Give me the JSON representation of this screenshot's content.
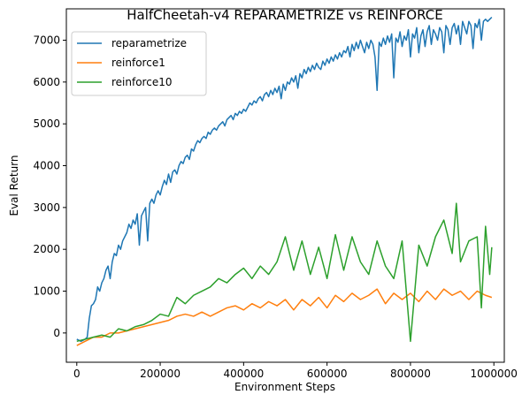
{
  "chart_data": {
    "type": "line",
    "title": "HalfCheetah-v4 REPARAMETRIZE vs REINFORCE",
    "xlabel": "Environment Steps",
    "ylabel": "Eval Return",
    "xlim": [
      -25000,
      1025000
    ],
    "ylim": [
      -700,
      7750
    ],
    "xticks": [
      0,
      200000,
      400000,
      600000,
      800000,
      1000000
    ],
    "yticks": [
      0,
      1000,
      2000,
      3000,
      4000,
      5000,
      6000,
      7000
    ],
    "xtick_labels": [
      "0",
      "200000",
      "400000",
      "600000",
      "800000",
      "1000000"
    ],
    "ytick_labels": [
      "0",
      "1000",
      "2000",
      "3000",
      "4000",
      "5000",
      "6000",
      "7000"
    ],
    "grid": false,
    "legend_position": "top-left",
    "series": [
      {
        "name": "reparametrize",
        "color": "#1f77b4",
        "points": [
          [
            0,
            -150
          ],
          [
            10000,
            -200
          ],
          [
            20000,
            -150
          ],
          [
            25000,
            -100
          ],
          [
            30000,
            350
          ],
          [
            35000,
            650
          ],
          [
            40000,
            700
          ],
          [
            45000,
            800
          ],
          [
            50000,
            1100
          ],
          [
            55000,
            1000
          ],
          [
            60000,
            1200
          ],
          [
            65000,
            1300
          ],
          [
            70000,
            1500
          ],
          [
            75000,
            1600
          ],
          [
            80000,
            1300
          ],
          [
            85000,
            1700
          ],
          [
            90000,
            1900
          ],
          [
            95000,
            1850
          ],
          [
            100000,
            2100
          ],
          [
            105000,
            2000
          ],
          [
            110000,
            2200
          ],
          [
            115000,
            2300
          ],
          [
            120000,
            2400
          ],
          [
            125000,
            2600
          ],
          [
            130000,
            2500
          ],
          [
            135000,
            2700
          ],
          [
            140000,
            2600
          ],
          [
            145000,
            2850
          ],
          [
            150000,
            2100
          ],
          [
            155000,
            2800
          ],
          [
            160000,
            2900
          ],
          [
            165000,
            3000
          ],
          [
            170000,
            2200
          ],
          [
            175000,
            3100
          ],
          [
            180000,
            3200
          ],
          [
            185000,
            3100
          ],
          [
            190000,
            3300
          ],
          [
            195000,
            3400
          ],
          [
            200000,
            3300
          ],
          [
            205000,
            3500
          ],
          [
            210000,
            3650
          ],
          [
            215000,
            3550
          ],
          [
            220000,
            3800
          ],
          [
            225000,
            3600
          ],
          [
            230000,
            3850
          ],
          [
            235000,
            3900
          ],
          [
            240000,
            3800
          ],
          [
            245000,
            4000
          ],
          [
            250000,
            4100
          ],
          [
            255000,
            4050
          ],
          [
            260000,
            4200
          ],
          [
            265000,
            4250
          ],
          [
            270000,
            4150
          ],
          [
            275000,
            4400
          ],
          [
            280000,
            4350
          ],
          [
            285000,
            4500
          ],
          [
            290000,
            4600
          ],
          [
            295000,
            4550
          ],
          [
            300000,
            4650
          ],
          [
            305000,
            4700
          ],
          [
            310000,
            4650
          ],
          [
            315000,
            4800
          ],
          [
            320000,
            4750
          ],
          [
            325000,
            4850
          ],
          [
            330000,
            4900
          ],
          [
            335000,
            4850
          ],
          [
            340000,
            4950
          ],
          [
            345000,
            5000
          ],
          [
            350000,
            5050
          ],
          [
            355000,
            4950
          ],
          [
            360000,
            5100
          ],
          [
            365000,
            5150
          ],
          [
            370000,
            5200
          ],
          [
            375000,
            5100
          ],
          [
            380000,
            5250
          ],
          [
            385000,
            5200
          ],
          [
            390000,
            5300
          ],
          [
            395000,
            5250
          ],
          [
            400000,
            5350
          ],
          [
            405000,
            5300
          ],
          [
            410000,
            5400
          ],
          [
            415000,
            5500
          ],
          [
            420000,
            5450
          ],
          [
            425000,
            5550
          ],
          [
            430000,
            5500
          ],
          [
            435000,
            5600
          ],
          [
            440000,
            5650
          ],
          [
            445000,
            5550
          ],
          [
            450000,
            5700
          ],
          [
            455000,
            5750
          ],
          [
            460000,
            5650
          ],
          [
            465000,
            5800
          ],
          [
            470000,
            5700
          ],
          [
            475000,
            5850
          ],
          [
            480000,
            5750
          ],
          [
            485000,
            5900
          ],
          [
            490000,
            5600
          ],
          [
            495000,
            5950
          ],
          [
            500000,
            5800
          ],
          [
            505000,
            6000
          ],
          [
            510000,
            5950
          ],
          [
            515000,
            6100
          ],
          [
            520000,
            6000
          ],
          [
            525000,
            6150
          ],
          [
            530000,
            5850
          ],
          [
            535000,
            6200
          ],
          [
            540000,
            6100
          ],
          [
            545000,
            6300
          ],
          [
            550000,
            6200
          ],
          [
            555000,
            6350
          ],
          [
            560000,
            6250
          ],
          [
            565000,
            6400
          ],
          [
            570000,
            6300
          ],
          [
            575000,
            6450
          ],
          [
            580000,
            6350
          ],
          [
            585000,
            6300
          ],
          [
            590000,
            6500
          ],
          [
            595000,
            6400
          ],
          [
            600000,
            6550
          ],
          [
            605000,
            6450
          ],
          [
            610000,
            6600
          ],
          [
            615000,
            6500
          ],
          [
            620000,
            6650
          ],
          [
            625000,
            6550
          ],
          [
            630000,
            6700
          ],
          [
            635000,
            6600
          ],
          [
            640000,
            6750
          ],
          [
            645000,
            6700
          ],
          [
            650000,
            6850
          ],
          [
            655000,
            6600
          ],
          [
            660000,
            6900
          ],
          [
            665000,
            6750
          ],
          [
            670000,
            6950
          ],
          [
            675000,
            6800
          ],
          [
            680000,
            7000
          ],
          [
            685000,
            6850
          ],
          [
            690000,
            6700
          ],
          [
            695000,
            6950
          ],
          [
            700000,
            6800
          ],
          [
            705000,
            7000
          ],
          [
            710000,
            6900
          ],
          [
            715000,
            6600
          ],
          [
            720000,
            5800
          ],
          [
            725000,
            6950
          ],
          [
            730000,
            6850
          ],
          [
            735000,
            7050
          ],
          [
            740000,
            6900
          ],
          [
            745000,
            7100
          ],
          [
            750000,
            6950
          ],
          [
            755000,
            7150
          ],
          [
            760000,
            6100
          ],
          [
            765000,
            7050
          ],
          [
            770000,
            6950
          ],
          [
            775000,
            7200
          ],
          [
            780000,
            6850
          ],
          [
            785000,
            7100
          ],
          [
            790000,
            7000
          ],
          [
            795000,
            7250
          ],
          [
            800000,
            6600
          ],
          [
            805000,
            7150
          ],
          [
            810000,
            7050
          ],
          [
            815000,
            7300
          ],
          [
            820000,
            6700
          ],
          [
            825000,
            7100
          ],
          [
            830000,
            7250
          ],
          [
            835000,
            6850
          ],
          [
            840000,
            7200
          ],
          [
            845000,
            7350
          ],
          [
            850000,
            6900
          ],
          [
            855000,
            7250
          ],
          [
            860000,
            7150
          ],
          [
            865000,
            7000
          ],
          [
            870000,
            7300
          ],
          [
            875000,
            7200
          ],
          [
            880000,
            6700
          ],
          [
            885000,
            7350
          ],
          [
            890000,
            7250
          ],
          [
            895000,
            6900
          ],
          [
            900000,
            7300
          ],
          [
            905000,
            7400
          ],
          [
            910000,
            7150
          ],
          [
            915000,
            7350
          ],
          [
            920000,
            6900
          ],
          [
            925000,
            7450
          ],
          [
            930000,
            7300
          ],
          [
            935000,
            7150
          ],
          [
            940000,
            7450
          ],
          [
            945000,
            7350
          ],
          [
            950000,
            6800
          ],
          [
            955000,
            7400
          ],
          [
            960000,
            7300
          ],
          [
            965000,
            7500
          ],
          [
            970000,
            7000
          ],
          [
            975000,
            7450
          ],
          [
            980000,
            7500
          ],
          [
            985000,
            7450
          ],
          [
            990000,
            7500
          ],
          [
            995000,
            7550
          ]
        ]
      },
      {
        "name": "reinforce1",
        "color": "#ff7f0e",
        "points": [
          [
            0,
            -300
          ],
          [
            20000,
            -200
          ],
          [
            40000,
            -100
          ],
          [
            60000,
            -100
          ],
          [
            80000,
            0
          ],
          [
            100000,
            0
          ],
          [
            120000,
            50
          ],
          [
            140000,
            100
          ],
          [
            160000,
            150
          ],
          [
            180000,
            200
          ],
          [
            200000,
            250
          ],
          [
            220000,
            300
          ],
          [
            240000,
            400
          ],
          [
            260000,
            450
          ],
          [
            280000,
            400
          ],
          [
            300000,
            500
          ],
          [
            320000,
            400
          ],
          [
            340000,
            500
          ],
          [
            360000,
            600
          ],
          [
            380000,
            650
          ],
          [
            400000,
            550
          ],
          [
            420000,
            700
          ],
          [
            440000,
            600
          ],
          [
            460000,
            750
          ],
          [
            480000,
            650
          ],
          [
            500000,
            800
          ],
          [
            520000,
            550
          ],
          [
            540000,
            800
          ],
          [
            560000,
            650
          ],
          [
            580000,
            850
          ],
          [
            600000,
            600
          ],
          [
            620000,
            900
          ],
          [
            640000,
            750
          ],
          [
            660000,
            950
          ],
          [
            680000,
            800
          ],
          [
            700000,
            900
          ],
          [
            720000,
            1050
          ],
          [
            740000,
            700
          ],
          [
            760000,
            950
          ],
          [
            780000,
            800
          ],
          [
            800000,
            950
          ],
          [
            820000,
            750
          ],
          [
            840000,
            1000
          ],
          [
            860000,
            800
          ],
          [
            880000,
            1050
          ],
          [
            900000,
            900
          ],
          [
            920000,
            1000
          ],
          [
            940000,
            800
          ],
          [
            960000,
            1000
          ],
          [
            980000,
            900
          ],
          [
            995000,
            850
          ]
        ]
      },
      {
        "name": "reinforce10",
        "color": "#2ca02c",
        "points": [
          [
            0,
            -200
          ],
          [
            20000,
            -150
          ],
          [
            40000,
            -100
          ],
          [
            60000,
            -50
          ],
          [
            80000,
            -100
          ],
          [
            100000,
            100
          ],
          [
            120000,
            50
          ],
          [
            140000,
            150
          ],
          [
            160000,
            200
          ],
          [
            180000,
            300
          ],
          [
            200000,
            450
          ],
          [
            220000,
            400
          ],
          [
            240000,
            850
          ],
          [
            260000,
            700
          ],
          [
            280000,
            900
          ],
          [
            300000,
            1000
          ],
          [
            320000,
            1100
          ],
          [
            340000,
            1300
          ],
          [
            360000,
            1200
          ],
          [
            380000,
            1400
          ],
          [
            400000,
            1550
          ],
          [
            420000,
            1300
          ],
          [
            440000,
            1600
          ],
          [
            460000,
            1400
          ],
          [
            480000,
            1700
          ],
          [
            500000,
            2300
          ],
          [
            520000,
            1500
          ],
          [
            540000,
            2200
          ],
          [
            560000,
            1400
          ],
          [
            580000,
            2050
          ],
          [
            600000,
            1300
          ],
          [
            620000,
            2350
          ],
          [
            640000,
            1500
          ],
          [
            660000,
            2300
          ],
          [
            680000,
            1700
          ],
          [
            700000,
            1400
          ],
          [
            720000,
            2200
          ],
          [
            740000,
            1600
          ],
          [
            760000,
            1300
          ],
          [
            780000,
            2200
          ],
          [
            800000,
            -200
          ],
          [
            820000,
            2100
          ],
          [
            840000,
            1600
          ],
          [
            860000,
            2300
          ],
          [
            880000,
            2700
          ],
          [
            900000,
            1900
          ],
          [
            910000,
            3100
          ],
          [
            920000,
            1700
          ],
          [
            940000,
            2200
          ],
          [
            960000,
            2300
          ],
          [
            970000,
            600
          ],
          [
            980000,
            2550
          ],
          [
            990000,
            1400
          ],
          [
            995000,
            2050
          ]
        ]
      }
    ]
  }
}
